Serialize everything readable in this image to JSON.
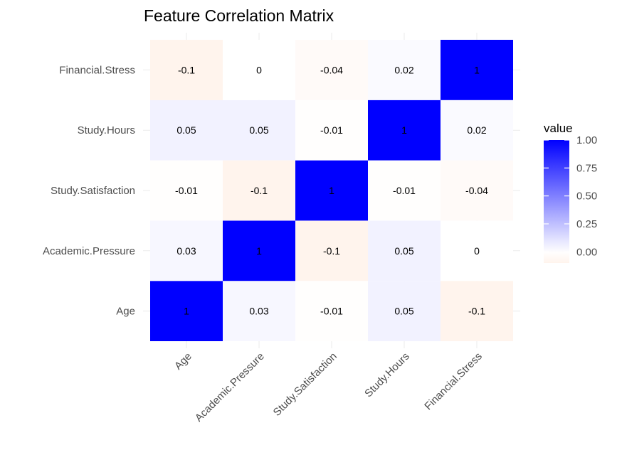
{
  "chart_data": {
    "type": "heatmap",
    "title": "Feature Correlation Matrix",
    "xlabel": "",
    "ylabel": "",
    "x_categories": [
      "Age",
      "Academic.Pressure",
      "Study.Satisfaction",
      "Study.Hours",
      "Financial.Stress"
    ],
    "y_categories": [
      "Age",
      "Academic.Pressure",
      "Study.Satisfaction",
      "Study.Hours",
      "Financial.Stress"
    ],
    "values": [
      [
        1,
        0.03,
        -0.01,
        0.05,
        -0.1
      ],
      [
        0.03,
        1,
        -0.1,
        0.05,
        0
      ],
      [
        -0.01,
        -0.1,
        1,
        -0.01,
        -0.04
      ],
      [
        0.05,
        0.05,
        -0.01,
        1,
        0.02
      ],
      [
        -0.1,
        0,
        -0.04,
        0.02,
        1
      ]
    ],
    "legend": {
      "title": "value",
      "placement": "right",
      "ticks": [
        "1.00",
        "0.75",
        "0.50",
        "0.25",
        "0.00"
      ],
      "range": [
        -0.1,
        1
      ]
    },
    "colors": {
      "low": "#ff8c4a",
      "mid": "#ffffff",
      "high": "#0000ff"
    },
    "grid": true
  }
}
